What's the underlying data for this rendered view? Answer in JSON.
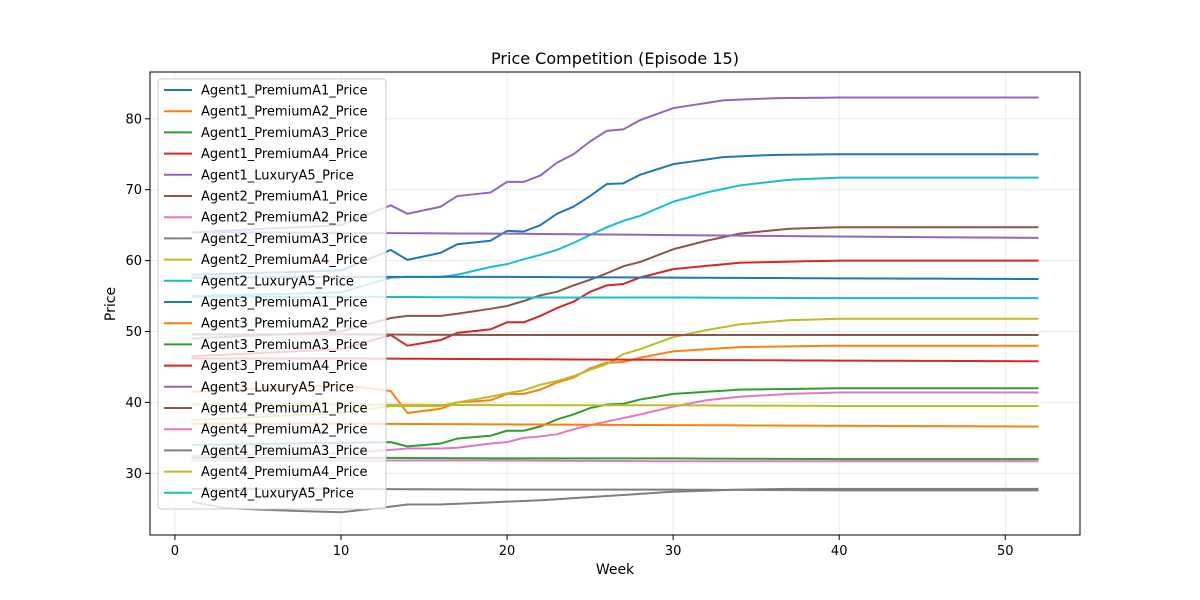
{
  "chart_data": {
    "type": "line",
    "title": "Price Competition (Episode 15)",
    "xlabel": "Week",
    "ylabel": "Price",
    "xlim": [
      -1.5,
      54.5
    ],
    "ylim": [
      21.3,
      86.6
    ],
    "xticks": [
      0,
      10,
      20,
      30,
      40,
      50
    ],
    "yticks": [
      30,
      40,
      50,
      60,
      70,
      80
    ],
    "grid": true,
    "legend_position": "upper-left",
    "x_start": 1,
    "x_end": 52,
    "series": [
      {
        "name": "Agent1_PremiumA1_Price",
        "color": "#1f77b4",
        "points": [
          [
            1,
            58
          ],
          [
            10,
            58.6
          ],
          [
            13,
            61.5
          ],
          [
            14,
            60.1
          ],
          [
            16,
            61.1
          ],
          [
            17,
            62.3
          ],
          [
            19,
            62.8
          ],
          [
            20,
            64.2
          ],
          [
            21,
            64.1
          ],
          [
            22,
            65
          ],
          [
            23,
            66.6
          ],
          [
            24,
            67.6
          ],
          [
            25,
            69.1
          ],
          [
            26,
            70.8
          ],
          [
            27,
            70.9
          ],
          [
            28,
            72.1
          ],
          [
            30,
            73.6
          ],
          [
            33,
            74.6
          ],
          [
            36,
            74.9
          ],
          [
            40,
            75
          ],
          [
            52,
            75
          ]
        ]
      },
      {
        "name": "Agent1_PremiumA2_Price",
        "color": "#ff7f0e",
        "points": [
          [
            1,
            41.5
          ],
          [
            10,
            42.5
          ],
          [
            13,
            41.6
          ],
          [
            14,
            38.5
          ],
          [
            16,
            39.1
          ],
          [
            17,
            40
          ],
          [
            19,
            40.3
          ],
          [
            20,
            41.2
          ],
          [
            21,
            41.2
          ],
          [
            22,
            41.8
          ],
          [
            23,
            42.8
          ],
          [
            24,
            43.5
          ],
          [
            25,
            44.8
          ],
          [
            26,
            45.6
          ],
          [
            27,
            45.7
          ],
          [
            28,
            46.3
          ],
          [
            30,
            47.2
          ],
          [
            34,
            47.8
          ],
          [
            40,
            48
          ],
          [
            52,
            48
          ]
        ]
      },
      {
        "name": "Agent1_PremiumA3_Price",
        "color": "#2ca02c",
        "points": [
          [
            1,
            34
          ],
          [
            10,
            34.3
          ],
          [
            13,
            34.4
          ],
          [
            14,
            33.8
          ],
          [
            16,
            34.2
          ],
          [
            17,
            34.9
          ],
          [
            19,
            35.3
          ],
          [
            20,
            36
          ],
          [
            21,
            36
          ],
          [
            22,
            36.6
          ],
          [
            23,
            37.6
          ],
          [
            24,
            38.3
          ],
          [
            25,
            39.2
          ],
          [
            26,
            39.7
          ],
          [
            27,
            39.8
          ],
          [
            28,
            40.4
          ],
          [
            30,
            41.2
          ],
          [
            34,
            41.8
          ],
          [
            40,
            42
          ],
          [
            52,
            42
          ]
        ]
      },
      {
        "name": "Agent1_PremiumA4_Price",
        "color": "#d62728",
        "points": [
          [
            1,
            46.5
          ],
          [
            10,
            47.5
          ],
          [
            13,
            49.5
          ],
          [
            14,
            48
          ],
          [
            16,
            48.8
          ],
          [
            17,
            49.8
          ],
          [
            19,
            50.3
          ],
          [
            20,
            51.3
          ],
          [
            21,
            51.3
          ],
          [
            22,
            52.2
          ],
          [
            23,
            53.3
          ],
          [
            24,
            54.2
          ],
          [
            25,
            55.6
          ],
          [
            26,
            56.5
          ],
          [
            27,
            56.7
          ],
          [
            28,
            57.6
          ],
          [
            30,
            58.8
          ],
          [
            34,
            59.7
          ],
          [
            40,
            60
          ],
          [
            52,
            60
          ]
        ]
      },
      {
        "name": "Agent1_LuxuryA5_Price",
        "color": "#9467bd",
        "points": [
          [
            1,
            64
          ],
          [
            10,
            65
          ],
          [
            13,
            67.8
          ],
          [
            14,
            66.6
          ],
          [
            16,
            67.6
          ],
          [
            17,
            69.1
          ],
          [
            19,
            69.6
          ],
          [
            20,
            71.1
          ],
          [
            21,
            71.1
          ],
          [
            22,
            72
          ],
          [
            23,
            73.8
          ],
          [
            24,
            75
          ],
          [
            25,
            76.8
          ],
          [
            26,
            78.3
          ],
          [
            27,
            78.5
          ],
          [
            28,
            79.8
          ],
          [
            30,
            81.5
          ],
          [
            33,
            82.6
          ],
          [
            36,
            82.9
          ],
          [
            40,
            83
          ],
          [
            52,
            83
          ]
        ]
      },
      {
        "name": "Agent2_PremiumA1_Price",
        "color": "#8c564b",
        "points": [
          [
            1,
            49
          ],
          [
            10,
            50
          ],
          [
            13,
            51.9
          ],
          [
            14,
            52.2
          ],
          [
            16,
            52.2
          ],
          [
            17,
            52.5
          ],
          [
            19,
            53.2
          ],
          [
            20,
            53.6
          ],
          [
            21,
            54.3
          ],
          [
            22,
            55.1
          ],
          [
            23,
            55.6
          ],
          [
            24,
            56.5
          ],
          [
            25,
            57.3
          ],
          [
            26,
            58.2
          ],
          [
            27,
            59.2
          ],
          [
            28,
            59.8
          ],
          [
            30,
            61.6
          ],
          [
            32,
            62.8
          ],
          [
            34,
            63.8
          ],
          [
            37,
            64.5
          ],
          [
            40,
            64.7
          ],
          [
            52,
            64.7
          ]
        ]
      },
      {
        "name": "Agent2_PremiumA2_Price",
        "color": "#e377c2",
        "points": [
          [
            1,
            32.5
          ],
          [
            10,
            32.8
          ],
          [
            13,
            33.3
          ],
          [
            14,
            33.5
          ],
          [
            16,
            33.5
          ],
          [
            17,
            33.6
          ],
          [
            19,
            34.2
          ],
          [
            20,
            34.4
          ],
          [
            21,
            35
          ],
          [
            22,
            35.2
          ],
          [
            23,
            35.5
          ],
          [
            24,
            36.2
          ],
          [
            25,
            36.8
          ],
          [
            26,
            37.3
          ],
          [
            27,
            37.8
          ],
          [
            28,
            38.3
          ],
          [
            30,
            39.4
          ],
          [
            32,
            40.3
          ],
          [
            34,
            40.8
          ],
          [
            37,
            41.2
          ],
          [
            40,
            41.4
          ],
          [
            52,
            41.4
          ]
        ]
      },
      {
        "name": "Agent2_PremiumA3_Price",
        "color": "#7f7f7f",
        "points": [
          [
            1,
            26
          ],
          [
            3,
            25.1
          ],
          [
            6,
            24.8
          ],
          [
            10,
            24.5
          ],
          [
            13,
            25.3
          ],
          [
            14,
            25.6
          ],
          [
            16,
            25.6
          ],
          [
            17,
            25.7
          ],
          [
            19,
            25.9
          ],
          [
            20,
            26
          ],
          [
            22,
            26.2
          ],
          [
            24,
            26.5
          ],
          [
            26,
            26.8
          ],
          [
            28,
            27.1
          ],
          [
            30,
            27.4
          ],
          [
            34,
            27.7
          ],
          [
            37,
            27.8
          ],
          [
            40,
            27.8
          ],
          [
            52,
            27.8
          ]
        ]
      },
      {
        "name": "Agent2_PremiumA4_Price",
        "color": "#bcbd22",
        "points": [
          [
            1,
            37.5
          ],
          [
            10,
            38.5
          ],
          [
            13,
            39.5
          ],
          [
            14,
            39.5
          ],
          [
            16,
            39.5
          ],
          [
            17,
            40
          ],
          [
            19,
            40.8
          ],
          [
            20,
            41.3
          ],
          [
            21,
            41.7
          ],
          [
            22,
            42.5
          ],
          [
            23,
            43
          ],
          [
            24,
            43.7
          ],
          [
            25,
            44.6
          ],
          [
            26,
            45.4
          ],
          [
            27,
            46.8
          ],
          [
            28,
            47.5
          ],
          [
            30,
            49.2
          ],
          [
            32,
            50.2
          ],
          [
            34,
            51
          ],
          [
            37,
            51.6
          ],
          [
            40,
            51.8
          ],
          [
            52,
            51.8
          ]
        ]
      },
      {
        "name": "Agent2_LuxuryA5_Price",
        "color": "#17becf",
        "points": [
          [
            1,
            55
          ],
          [
            10,
            55.5
          ],
          [
            13,
            57.6
          ],
          [
            14,
            57.7
          ],
          [
            16,
            57.7
          ],
          [
            17,
            58
          ],
          [
            19,
            59.1
          ],
          [
            20,
            59.5
          ],
          [
            21,
            60.2
          ],
          [
            22,
            60.8
          ],
          [
            23,
            61.5
          ],
          [
            24,
            62.5
          ],
          [
            25,
            63.6
          ],
          [
            26,
            64.7
          ],
          [
            27,
            65.6
          ],
          [
            28,
            66.3
          ],
          [
            30,
            68.3
          ],
          [
            32,
            69.6
          ],
          [
            34,
            70.6
          ],
          [
            37,
            71.4
          ],
          [
            40,
            71.7
          ],
          [
            52,
            71.7
          ]
        ]
      },
      {
        "name": "Agent3_PremiumA1_Price",
        "color": "#1f77b4",
        "points": [
          [
            1,
            57.6
          ],
          [
            10,
            57.7
          ],
          [
            20,
            57.7
          ],
          [
            30,
            57.6
          ],
          [
            40,
            57.5
          ],
          [
            52,
            57.4
          ]
        ]
      },
      {
        "name": "Agent3_PremiumA2_Price",
        "color": "#ff7f0e",
        "points": [
          [
            1,
            37
          ],
          [
            10,
            37
          ],
          [
            20,
            36.9
          ],
          [
            30,
            36.8
          ],
          [
            40,
            36.7
          ],
          [
            52,
            36.6
          ]
        ]
      },
      {
        "name": "Agent3_PremiumA3_Price",
        "color": "#2ca02c",
        "points": [
          [
            1,
            32.2
          ],
          [
            10,
            32.2
          ],
          [
            20,
            32.1
          ],
          [
            30,
            32.1
          ],
          [
            40,
            32
          ],
          [
            52,
            32
          ]
        ]
      },
      {
        "name": "Agent3_PremiumA4_Price",
        "color": "#d62728",
        "points": [
          [
            1,
            46.2
          ],
          [
            10,
            46.2
          ],
          [
            20,
            46.1
          ],
          [
            30,
            46
          ],
          [
            40,
            45.9
          ],
          [
            52,
            45.8
          ]
        ]
      },
      {
        "name": "Agent3_LuxuryA5_Price",
        "color": "#9467bd",
        "points": [
          [
            1,
            64
          ],
          [
            10,
            63.9
          ],
          [
            20,
            63.8
          ],
          [
            30,
            63.6
          ],
          [
            40,
            63.4
          ],
          [
            52,
            63.2
          ]
        ]
      },
      {
        "name": "Agent4_PremiumA1_Price",
        "color": "#8c564b",
        "points": [
          [
            1,
            49.6
          ],
          [
            10,
            49.6
          ],
          [
            20,
            49.5
          ],
          [
            30,
            49.5
          ],
          [
            40,
            49.5
          ],
          [
            52,
            49.5
          ]
        ]
      },
      {
        "name": "Agent4_PremiumA2_Price",
        "color": "#e377c2",
        "points": [
          [
            1,
            31.8
          ],
          [
            10,
            31.8
          ],
          [
            20,
            31.8
          ],
          [
            30,
            31.7
          ],
          [
            40,
            31.7
          ],
          [
            52,
            31.7
          ]
        ]
      },
      {
        "name": "Agent4_PremiumA3_Price",
        "color": "#7f7f7f",
        "points": [
          [
            1,
            27.8
          ],
          [
            10,
            27.8
          ],
          [
            20,
            27.7
          ],
          [
            30,
            27.7
          ],
          [
            40,
            27.6
          ],
          [
            52,
            27.6
          ]
        ]
      },
      {
        "name": "Agent4_PremiumA4_Price",
        "color": "#bcbd22",
        "points": [
          [
            1,
            39.7
          ],
          [
            10,
            39.7
          ],
          [
            20,
            39.6
          ],
          [
            30,
            39.6
          ],
          [
            40,
            39.5
          ],
          [
            52,
            39.5
          ]
        ]
      },
      {
        "name": "Agent4_LuxuryA5_Price",
        "color": "#17becf",
        "points": [
          [
            1,
            54.9
          ],
          [
            10,
            54.9
          ],
          [
            20,
            54.8
          ],
          [
            30,
            54.8
          ],
          [
            40,
            54.7
          ],
          [
            52,
            54.7
          ]
        ]
      }
    ]
  }
}
